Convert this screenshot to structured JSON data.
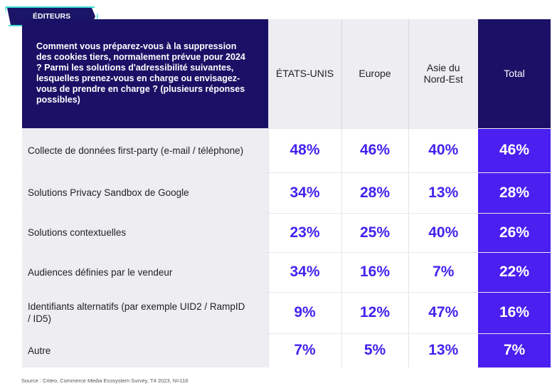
{
  "tag": "ÉDITEURS",
  "question": "Comment vous préparez-vous à la suppression des cookies tiers, normalement prévue pour 2024 ? Parmi les solutions d'adressibilité suivantes, lesquelles prenez-vous en charge ou envisagez-vous de prendre en charge ? (plusieurs réponses possibles)",
  "columns": [
    "ÉTATS-UNIS",
    "Europe",
    "Asie du Nord-Est",
    "Total"
  ],
  "source": "Source : Criteo, Commerce Media Ecosystem Survey, T4 2023, N=116",
  "colors": {
    "header_bg": "#1a1166",
    "total_bg": "#4a1ff0",
    "value_text": "#4422ee",
    "tag_border": "#3de0d0"
  },
  "chart_data": {
    "type": "table",
    "categories": [
      "Collecte de données first-party (e-mail / téléphone)",
      "Solutions Privacy Sandbox de Google",
      "Solutions contextuelles",
      "Audiences définies par le vendeur",
      "Identifiants alternatifs (par exemple UID2 / RampID / ID5)",
      "Autre"
    ],
    "series": [
      {
        "name": "ÉTATS-UNIS",
        "values": [
          "48%",
          "34%",
          "23%",
          "34%",
          "9%",
          "7%"
        ]
      },
      {
        "name": "Europe",
        "values": [
          "46%",
          "28%",
          "25%",
          "16%",
          "12%",
          "5%"
        ]
      },
      {
        "name": "Asie du Nord-Est",
        "values": [
          "40%",
          "13%",
          "40%",
          "7%",
          "47%",
          "13%"
        ]
      },
      {
        "name": "Total",
        "values": [
          "46%",
          "28%",
          "26%",
          "22%",
          "16%",
          "7%"
        ]
      }
    ]
  }
}
